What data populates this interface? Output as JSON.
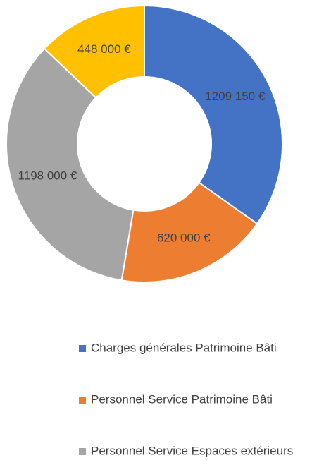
{
  "chart_data": {
    "type": "donut",
    "categories": [
      "Charges générales Patrimoine Bâti",
      "Personnel Service Patrimoine Bâti",
      "Personnel Service Espaces extérieurs",
      null
    ],
    "values": [
      1209150,
      620000,
      1198000,
      448000
    ],
    "value_labels": [
      "1209 150 €",
      "620 000 €",
      "1198 000 €",
      "448 000 €"
    ],
    "colors": [
      "#4472c4",
      "#ed7d31",
      "#a5a5a5",
      "#ffc000"
    ],
    "legend": "bottom"
  }
}
